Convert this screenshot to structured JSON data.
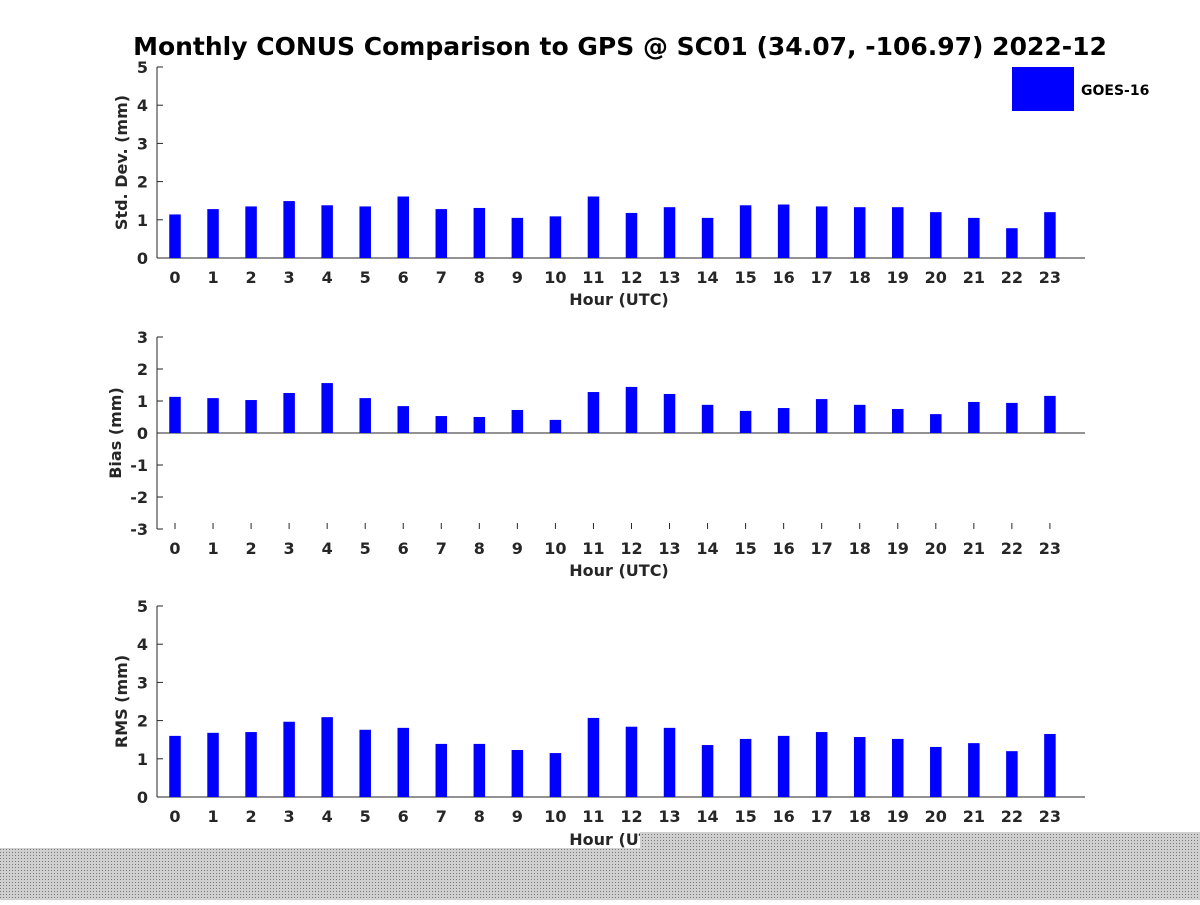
{
  "chart_data": {
    "title": "Monthly CONUS Comparison to GPS @ SC01 (34.07, -106.97) 2022-12",
    "legend": {
      "entries": [
        "GOES-16"
      ],
      "placement": "top-right"
    },
    "colors": {
      "bars": "#0000ff",
      "axes": "#262626"
    },
    "panels": [
      {
        "type": "bar",
        "ylabel": "Std. Dev. (mm)",
        "xlabel": "Hour (UTC)",
        "ylim": [
          0,
          5
        ],
        "yticks": [
          0,
          1,
          2,
          3,
          4,
          5
        ],
        "categories": [
          0,
          1,
          2,
          3,
          4,
          5,
          6,
          7,
          8,
          9,
          10,
          11,
          12,
          13,
          14,
          15,
          16,
          17,
          18,
          19,
          20,
          21,
          22,
          23
        ],
        "series": [
          {
            "name": "GOES-16",
            "values": [
              1.14,
              1.28,
              1.35,
              1.49,
              1.38,
              1.35,
              1.61,
              1.28,
              1.31,
              1.05,
              1.09,
              1.61,
              1.18,
              1.33,
              1.05,
              1.38,
              1.4,
              1.35,
              1.33,
              1.33,
              1.2,
              1.05,
              0.78,
              1.2
            ]
          }
        ]
      },
      {
        "type": "bar",
        "ylabel": "Bias (mm)",
        "xlabel": "Hour (UTC)",
        "ylim": [
          -3,
          3
        ],
        "yticks": [
          -3,
          -2,
          -1,
          0,
          1,
          2,
          3
        ],
        "categories": [
          0,
          1,
          2,
          3,
          4,
          5,
          6,
          7,
          8,
          9,
          10,
          11,
          12,
          13,
          14,
          15,
          16,
          17,
          18,
          19,
          20,
          21,
          22,
          23
        ],
        "series": [
          {
            "name": "GOES-16",
            "values": [
              1.13,
              1.09,
              1.03,
              1.25,
              1.56,
              1.09,
              0.84,
              0.53,
              0.5,
              0.72,
              0.41,
              1.28,
              1.44,
              1.22,
              0.88,
              0.69,
              0.78,
              1.06,
              0.88,
              0.75,
              0.59,
              0.97,
              0.94,
              1.16
            ]
          }
        ]
      },
      {
        "type": "bar",
        "ylabel": "RMS (mm)",
        "xlabel": "Hour (UTC)",
        "ylim": [
          0,
          5
        ],
        "yticks": [
          0,
          1,
          2,
          3,
          4,
          5
        ],
        "categories": [
          0,
          1,
          2,
          3,
          4,
          5,
          6,
          7,
          8,
          9,
          10,
          11,
          12,
          13,
          14,
          15,
          16,
          17,
          18,
          19,
          20,
          21,
          22,
          23
        ],
        "series": [
          {
            "name": "GOES-16",
            "values": [
              1.6,
              1.68,
              1.7,
              1.97,
              2.09,
              1.76,
              1.81,
              1.39,
              1.39,
              1.23,
              1.15,
              2.07,
              1.84,
              1.81,
              1.36,
              1.52,
              1.6,
              1.7,
              1.57,
              1.52,
              1.31,
              1.41,
              1.2,
              1.65
            ]
          }
        ]
      }
    ]
  }
}
